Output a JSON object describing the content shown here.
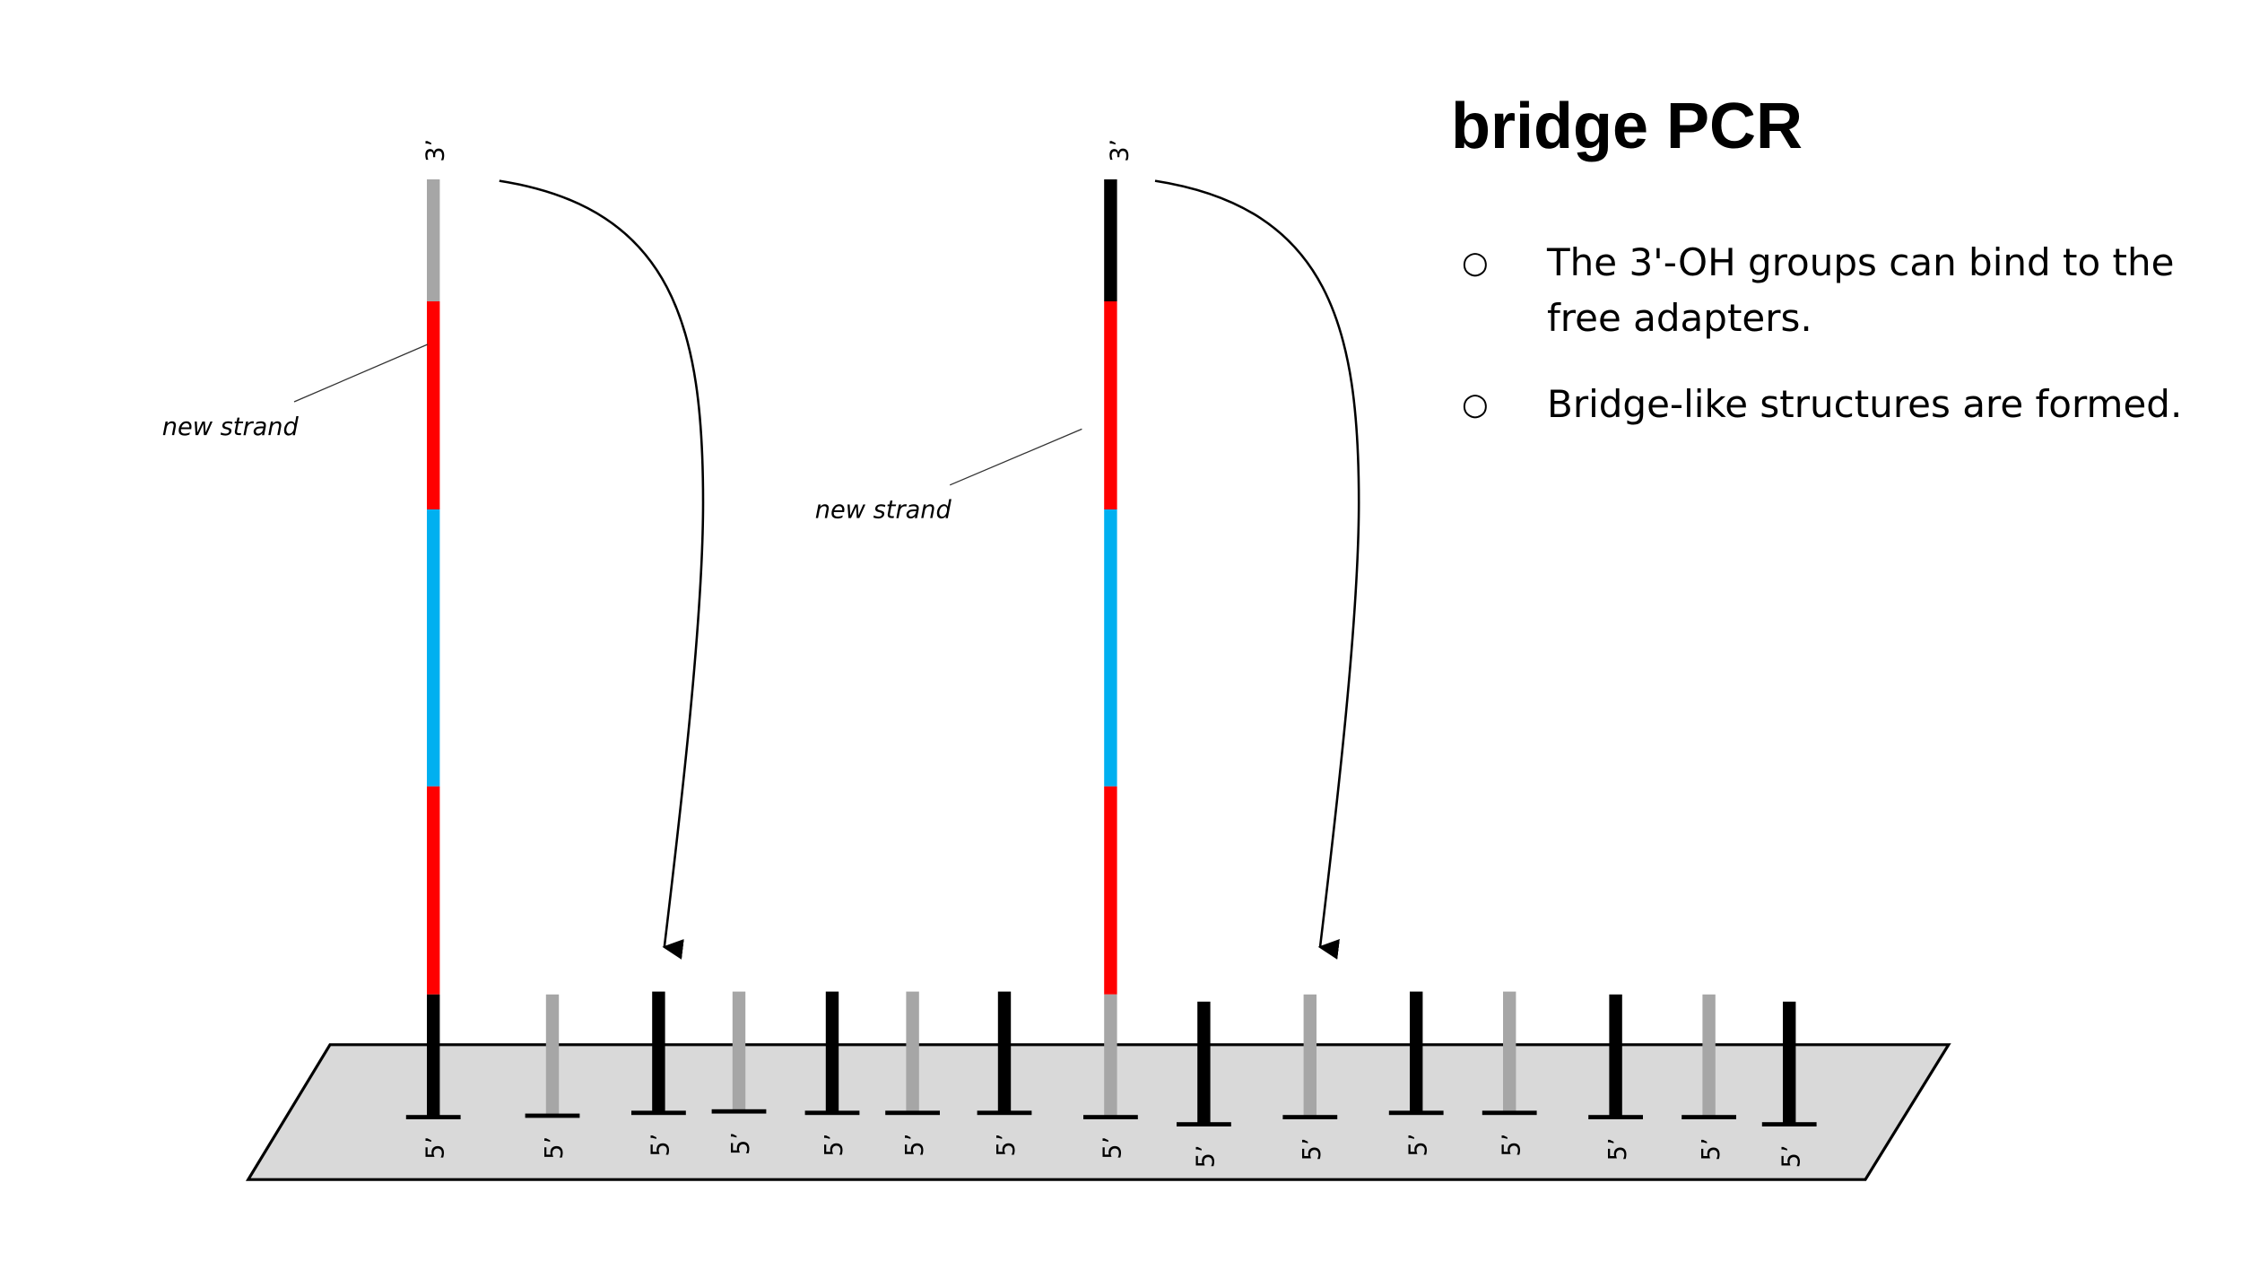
{
  "title": "bridge PCR",
  "bullets": [
    {
      "icon": "hollow-circle-bullet",
      "text": "The 3'-OH groups can bind to the free adapters."
    },
    {
      "icon": "hollow-circle-bullet",
      "text": "Bridge-like structures are formed."
    }
  ],
  "labels": {
    "three_prime": "3’",
    "five_prime": "5’",
    "new_strand": "new strand"
  },
  "colors": {
    "adapter_black": "#000000",
    "adapter_gray": "#a6a6a6",
    "insert_red": "#ff0000",
    "insert_blue": "#00b0f0",
    "surface": "#d9d9d9"
  }
}
